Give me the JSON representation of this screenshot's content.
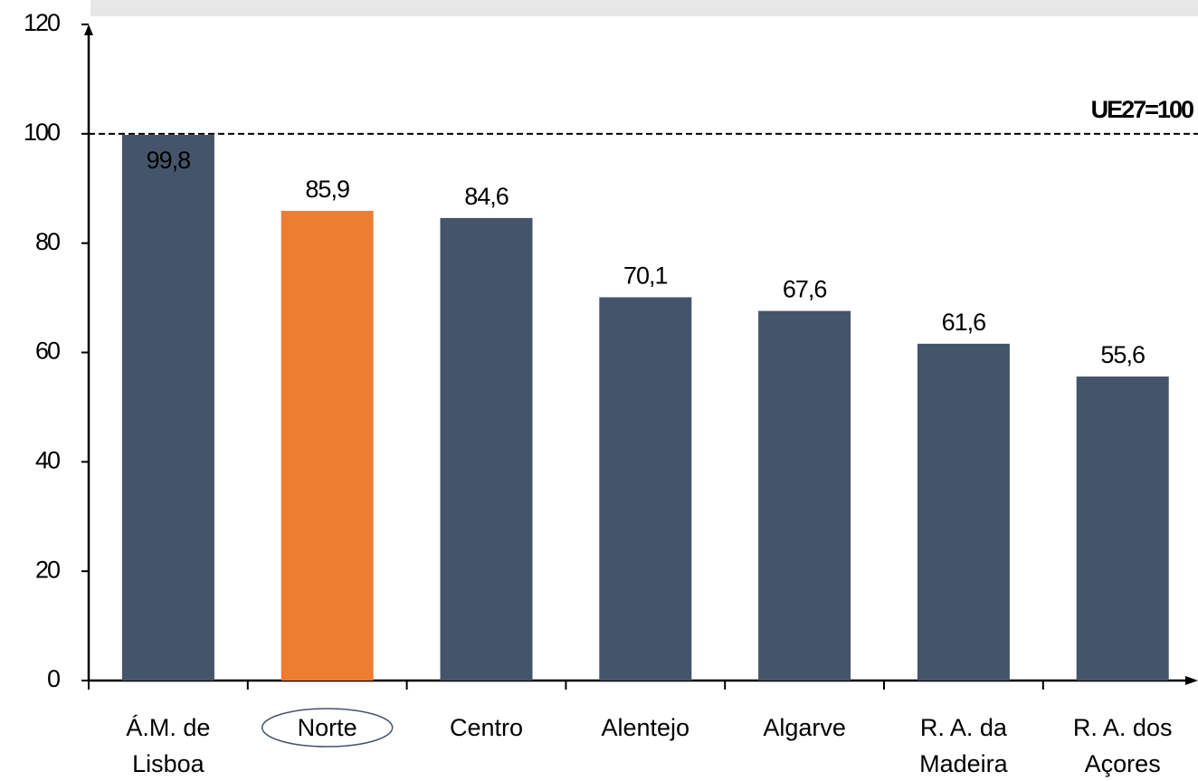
{
  "chart_data": {
    "type": "bar",
    "categories": [
      "Á.M. de\nLisboa",
      "Norte",
      "Centro",
      "Alentejo",
      "Algarve",
      "R. A. da\nMadeira",
      "R. A. dos\nAçores"
    ],
    "values": [
      99.8,
      85.9,
      84.6,
      70.1,
      67.6,
      61.6,
      55.6
    ],
    "value_labels": [
      "99,8",
      "85,9",
      "84,6",
      "70,1",
      "67,6",
      "61,6",
      "55,6"
    ],
    "colors": [
      "#44546a",
      "#ed7d31",
      "#44546a",
      "#44546a",
      "#44546a",
      "#44546a",
      "#44546a"
    ],
    "highlight_category": "Norte",
    "reference_line": {
      "value": 100,
      "label": "UE27=100"
    },
    "ylim": [
      0,
      120
    ],
    "yticks": [
      0,
      20,
      40,
      60,
      80,
      100,
      120
    ],
    "grid": false
  }
}
